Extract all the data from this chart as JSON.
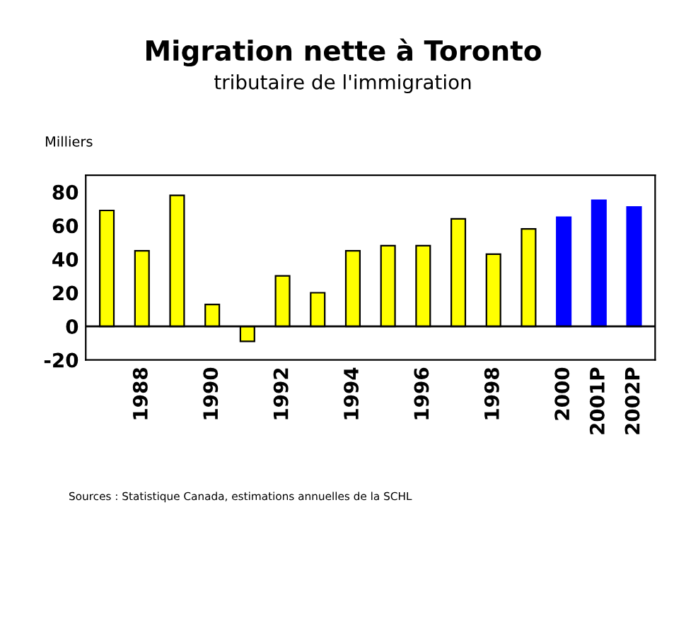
{
  "chart_data": {
    "type": "bar",
    "title": "Migration nette à Toronto",
    "subtitle": "tributaire de l'immigration",
    "ylabel": "Milliers",
    "categories": [
      null,
      "1988",
      null,
      "1990",
      null,
      "1992",
      null,
      "1994",
      null,
      "1996",
      null,
      "1998",
      null,
      "2000",
      "2001P",
      "2002P"
    ],
    "values": [
      69,
      45,
      78,
      13,
      -9,
      30,
      20,
      45,
      48,
      48,
      64,
      43,
      58,
      65,
      75,
      71
    ],
    "ref_lines": [
      {
        "axis": "y",
        "value": 0,
        "color": "#000000"
      }
    ],
    "colors": [
      "#ffff00",
      "#ffff00",
      "#ffff00",
      "#ffff00",
      "#ffff00",
      "#ffff00",
      "#ffff00",
      "#ffff00",
      "#ffff00",
      "#ffff00",
      "#ffff00",
      "#ffff00",
      "#ffff00",
      "#0000ff",
      "#0000ff",
      "#0000ff"
    ],
    "ylim": [
      -20,
      90
    ],
    "yticks": [
      -20,
      0,
      20,
      40,
      60,
      80
    ],
    "grid": false,
    "legend": false,
    "annotations": [
      "Sources : Statistique Canada, estimations annuelles de la SCHL"
    ]
  }
}
